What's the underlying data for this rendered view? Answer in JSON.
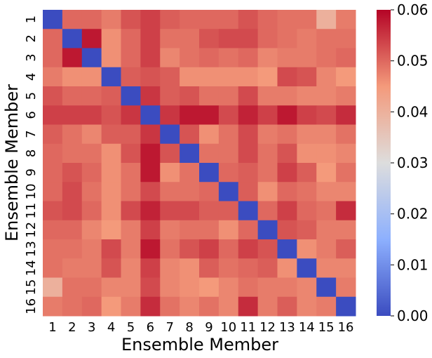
{
  "chart_data": {
    "type": "heatmap",
    "title": "",
    "xlabel": "Ensemble Member",
    "ylabel": "Ensemble Member",
    "categories_x": [
      "1",
      "2",
      "3",
      "4",
      "5",
      "6",
      "7",
      "8",
      "9",
      "10",
      "11",
      "12",
      "13",
      "14",
      "15",
      "16"
    ],
    "categories_y": [
      "1",
      "2",
      "3",
      "4",
      "5",
      "6",
      "7",
      "8",
      "9",
      "10",
      "11",
      "12",
      "13",
      "14",
      "15",
      "16"
    ],
    "values": [
      [
        0.0,
        0.05,
        0.05,
        0.048,
        0.052,
        0.054,
        0.051,
        0.05,
        0.05,
        0.05,
        0.052,
        0.05,
        0.049,
        0.049,
        0.04,
        0.048
      ],
      [
        0.05,
        0.0,
        0.058,
        0.046,
        0.05,
        0.054,
        0.049,
        0.049,
        0.052,
        0.053,
        0.053,
        0.05,
        0.049,
        0.048,
        0.049,
        0.049
      ],
      [
        0.05,
        0.058,
        0.0,
        0.046,
        0.05,
        0.054,
        0.047,
        0.049,
        0.05,
        0.049,
        0.05,
        0.047,
        0.048,
        0.048,
        0.049,
        0.05
      ],
      [
        0.048,
        0.046,
        0.046,
        0.0,
        0.051,
        0.052,
        0.051,
        0.046,
        0.046,
        0.046,
        0.046,
        0.045,
        0.053,
        0.052,
        0.047,
        0.045
      ],
      [
        0.052,
        0.05,
        0.05,
        0.051,
        0.0,
        0.055,
        0.051,
        0.052,
        0.049,
        0.049,
        0.053,
        0.048,
        0.048,
        0.047,
        0.047,
        0.048
      ],
      [
        0.054,
        0.054,
        0.054,
        0.052,
        0.055,
        0.0,
        0.055,
        0.058,
        0.058,
        0.053,
        0.057,
        0.054,
        0.058,
        0.054,
        0.053,
        0.056
      ],
      [
        0.051,
        0.049,
        0.047,
        0.051,
        0.051,
        0.055,
        0.0,
        0.052,
        0.046,
        0.049,
        0.053,
        0.048,
        0.049,
        0.047,
        0.047,
        0.049
      ],
      [
        0.05,
        0.049,
        0.049,
        0.046,
        0.052,
        0.058,
        0.052,
        0.0,
        0.049,
        0.049,
        0.053,
        0.049,
        0.052,
        0.046,
        0.046,
        0.047
      ],
      [
        0.05,
        0.052,
        0.05,
        0.046,
        0.049,
        0.058,
        0.046,
        0.049,
        0.0,
        0.05,
        0.051,
        0.049,
        0.054,
        0.051,
        0.045,
        0.049
      ],
      [
        0.05,
        0.053,
        0.049,
        0.046,
        0.049,
        0.053,
        0.049,
        0.049,
        0.05,
        0.0,
        0.051,
        0.046,
        0.05,
        0.049,
        0.047,
        0.047
      ],
      [
        0.052,
        0.053,
        0.05,
        0.046,
        0.053,
        0.057,
        0.053,
        0.053,
        0.051,
        0.051,
        0.0,
        0.05,
        0.054,
        0.05,
        0.049,
        0.056
      ],
      [
        0.05,
        0.05,
        0.047,
        0.045,
        0.048,
        0.054,
        0.048,
        0.049,
        0.049,
        0.046,
        0.05,
        0.0,
        0.052,
        0.051,
        0.048,
        0.048
      ],
      [
        0.049,
        0.049,
        0.048,
        0.053,
        0.048,
        0.058,
        0.049,
        0.052,
        0.054,
        0.05,
        0.054,
        0.052,
        0.0,
        0.046,
        0.048,
        0.051
      ],
      [
        0.049,
        0.048,
        0.048,
        0.052,
        0.047,
        0.054,
        0.047,
        0.046,
        0.051,
        0.049,
        0.05,
        0.051,
        0.046,
        0.0,
        0.047,
        0.047
      ],
      [
        0.04,
        0.049,
        0.049,
        0.047,
        0.047,
        0.053,
        0.047,
        0.046,
        0.045,
        0.047,
        0.049,
        0.048,
        0.048,
        0.047,
        0.0,
        0.048
      ],
      [
        0.048,
        0.049,
        0.05,
        0.045,
        0.048,
        0.056,
        0.049,
        0.047,
        0.049,
        0.047,
        0.056,
        0.048,
        0.051,
        0.047,
        0.048,
        0.0
      ]
    ],
    "colorbar": {
      "colormap": "coolwarm",
      "vmin": 0.0,
      "vmax": 0.06,
      "ticks": [
        "0.00",
        "0.01",
        "0.02",
        "0.03",
        "0.04",
        "0.05",
        "0.06"
      ]
    },
    "grid": false,
    "legend": "colorbar-right"
  }
}
